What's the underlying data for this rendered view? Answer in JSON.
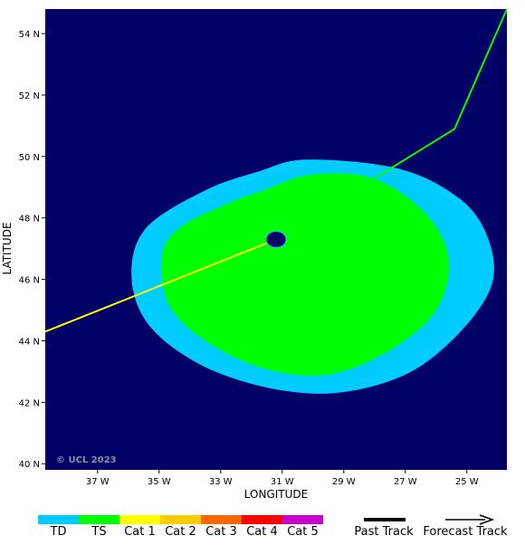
{
  "map": {
    "background_color": "#000066",
    "lon_range": [
      -38.7,
      -23.7
    ],
    "lat_range": [
      39.8,
      54.8
    ],
    "x_ticks": [
      {
        "value": -37,
        "label": "37 W"
      },
      {
        "value": -35,
        "label": "35 W"
      },
      {
        "value": -33,
        "label": "33 W"
      },
      {
        "value": -31,
        "label": "31 W"
      },
      {
        "value": -29,
        "label": "29 W"
      },
      {
        "value": -27,
        "label": "27 W"
      },
      {
        "value": -25,
        "label": "25 W"
      }
    ],
    "y_ticks": [
      {
        "value": 54,
        "label": "54 N"
      },
      {
        "value": 52,
        "label": "52 N"
      },
      {
        "value": 50,
        "label": "50 N"
      },
      {
        "value": 48,
        "label": "48 N"
      },
      {
        "value": 46,
        "label": "46 N"
      },
      {
        "value": 44,
        "label": "44 N"
      },
      {
        "value": 42,
        "label": "42 N"
      },
      {
        "value": 40,
        "label": "40 N"
      }
    ],
    "xlabel": "LONGITUDE",
    "ylabel": "LATITUDE",
    "watermark": "© UCL 2023",
    "wind_fields": [
      {
        "category": "TD",
        "color": "#00ccff",
        "outline": [
          [
            -30.2,
            49.9
          ],
          [
            -27.2,
            49.6
          ],
          [
            -25.2,
            48.6
          ],
          [
            -24.3,
            47.3
          ],
          [
            -24.2,
            45.8
          ],
          [
            -25.3,
            44.2
          ],
          [
            -27.0,
            42.9
          ],
          [
            -29.3,
            42.3
          ],
          [
            -31.6,
            42.5
          ],
          [
            -33.8,
            43.3
          ],
          [
            -35.4,
            44.6
          ],
          [
            -35.9,
            46.2
          ],
          [
            -35.4,
            47.7
          ],
          [
            -33.5,
            48.9
          ],
          [
            -31.8,
            49.5
          ]
        ]
      },
      {
        "category": "TS",
        "color": "#00ff00",
        "outline": [
          [
            -30.1,
            49.4
          ],
          [
            -28.1,
            49.3
          ],
          [
            -26.4,
            48.2
          ],
          [
            -25.6,
            46.7
          ],
          [
            -26.0,
            45.0
          ],
          [
            -27.5,
            43.7
          ],
          [
            -29.5,
            42.9
          ],
          [
            -31.6,
            43.1
          ],
          [
            -33.5,
            44.0
          ],
          [
            -34.7,
            45.2
          ],
          [
            -34.9,
            46.8
          ],
          [
            -34.3,
            47.7
          ],
          [
            -32.7,
            48.5
          ],
          [
            -31.6,
            48.9
          ]
        ]
      }
    ],
    "eye": {
      "lon": -31.2,
      "lat": 47.3,
      "color": "#000066"
    },
    "tracks": [
      {
        "name": "past",
        "color": "#ffff00",
        "points": [
          [
            -38.7,
            44.3
          ],
          [
            -31.2,
            47.3
          ]
        ]
      },
      {
        "name": "forecast",
        "color": "#00ff00",
        "points": [
          [
            -31.2,
            47.3
          ],
          [
            -25.4,
            50.9
          ],
          [
            -23.7,
            54.8
          ]
        ]
      }
    ]
  },
  "legend": {
    "categories": [
      {
        "label": "TD",
        "color": "#00ccff"
      },
      {
        "label": "TS",
        "color": "#00ff00"
      },
      {
        "label": "Cat 1",
        "color": "#ffff00"
      },
      {
        "label": "Cat 2",
        "color": "#ffcc00"
      },
      {
        "label": "Cat 3",
        "color": "#ff6600"
      },
      {
        "label": "Cat 4",
        "color": "#ff0000"
      },
      {
        "label": "Cat 5",
        "color": "#cc00cc"
      }
    ],
    "past_track_label": "Past Track",
    "forecast_track_label": "Forecast Track"
  }
}
